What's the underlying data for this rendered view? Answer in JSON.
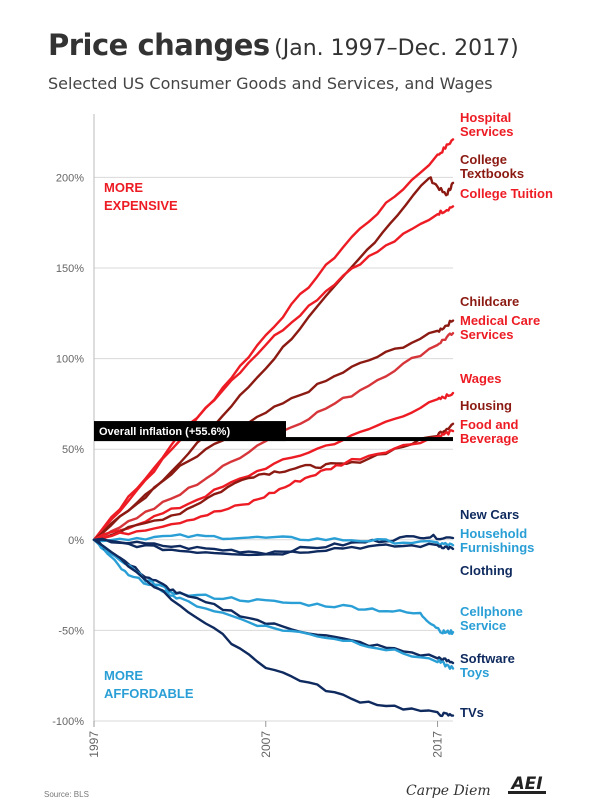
{
  "header": {
    "title": "Price changes",
    "date_range": "(Jan. 1997–Dec. 2017)",
    "subtitle": "Selected US Consumer Goods and Services, and Wages"
  },
  "footer": {
    "source": "Source: BLS",
    "brand": "Carpe Diem",
    "logo_text": "AEI"
  },
  "colors": {
    "expensive_red": "#ed1c24",
    "dark_red": "#8b1a12",
    "navy": "#0f2a5e",
    "light_blue": "#2a9fd6",
    "inflation_black": "#000000"
  },
  "chart_data": {
    "type": "line",
    "title": "Price changes",
    "xlabel": "",
    "ylabel": "",
    "x_ticks": [
      "1997",
      "2007",
      "2017"
    ],
    "xlim": [
      1997,
      2017.9
    ],
    "y_ticks": [
      200,
      150,
      100,
      50,
      0,
      -50,
      -100
    ],
    "y_tick_labels": [
      "200%",
      "150%",
      "100%",
      "50%",
      "0%",
      "-50%",
      "-100%"
    ],
    "ylim": [
      -100,
      235
    ],
    "grid": true,
    "annotations": {
      "more_expensive": [
        "MORE",
        "EXPENSIVE"
      ],
      "more_affordable": [
        "MORE",
        "AFFORDABLE"
      ],
      "inflation_label": "Overall inflation (+55.6%)",
      "inflation_value": 55.6
    },
    "series": [
      {
        "name": "Hospital Services",
        "label_lines": [
          "Hospital",
          "Services"
        ],
        "color": "#ed1c24",
        "x": [
          1997,
          2002,
          2007,
          2012,
          2017,
          2017.9
        ],
        "values": [
          0,
          55,
          113,
          167,
          212,
          221
        ]
      },
      {
        "name": "College Textbooks",
        "label_lines": [
          "College",
          "Textbooks"
        ],
        "color": "#8b1a12",
        "x": [
          1997,
          2002,
          2007,
          2012,
          2016.5,
          2017.5,
          2017.9
        ],
        "values": [
          0,
          42,
          95,
          150,
          200,
          190,
          197
        ]
      },
      {
        "name": "College Tuition",
        "label_lines": [
          "College Tuition"
        ],
        "color": "#ed1c24",
        "x": [
          1997,
          2002,
          2007,
          2012,
          2017,
          2017.9
        ],
        "values": [
          0,
          58,
          108,
          150,
          180,
          184
        ]
      },
      {
        "name": "Childcare",
        "label_lines": [
          "Childcare"
        ],
        "color": "#8b1a12",
        "x": [
          1997,
          2002,
          2007,
          2012,
          2017,
          2017.9
        ],
        "values": [
          0,
          40,
          70,
          95,
          115,
          121
        ]
      },
      {
        "name": "Medical Care Services",
        "label_lines": [
          "Medical Care",
          "Services"
        ],
        "color": "#d6353a",
        "x": [
          1997,
          2002,
          2007,
          2012,
          2017,
          2017.9
        ],
        "values": [
          0,
          25,
          55,
          80,
          108,
          114
        ]
      },
      {
        "name": "Wages",
        "label_lines": [
          "Wages"
        ],
        "color": "#ed1c24",
        "x": [
          1997,
          2002,
          2007,
          2012,
          2017,
          2017.9
        ],
        "values": [
          0,
          18,
          40,
          57,
          77,
          81
        ]
      },
      {
        "name": "Housing",
        "label_lines": [
          "Housing"
        ],
        "color": "#8b1a12",
        "x": [
          1997,
          2002,
          2006,
          2009,
          2012,
          2017,
          2017.9
        ],
        "values": [
          0,
          15,
          35,
          40,
          42,
          58,
          64
        ]
      },
      {
        "name": "Food and Beverage",
        "label_lines": [
          "Food and",
          "Beverage"
        ],
        "color": "#ed1c24",
        "x": [
          1997,
          2002,
          2006,
          2009,
          2012,
          2017,
          2017.9
        ],
        "values": [
          0,
          10,
          20,
          33,
          44,
          57,
          60
        ]
      },
      {
        "name": "New Cars",
        "label_lines": [
          "New Cars"
        ],
        "color": "#0f2a5e",
        "x": [
          1997,
          2002,
          2007,
          2012,
          2016,
          2017.9
        ],
        "values": [
          0,
          -4,
          -7,
          -2,
          2,
          1
        ]
      },
      {
        "name": "Household Furnishings",
        "label_lines": [
          "Household",
          "Furnishings"
        ],
        "color": "#2a9fd6",
        "x": [
          1997,
          2002,
          2007,
          2012,
          2017,
          2017.9
        ],
        "values": [
          0,
          2,
          1,
          0,
          -2,
          -3
        ]
      },
      {
        "name": "Clothing",
        "label_lines": [
          "Clothing"
        ],
        "color": "#0f2a5e",
        "x": [
          1997,
          2002,
          2007,
          2012,
          2017,
          2017.9
        ],
        "values": [
          0,
          -6,
          -8,
          -4,
          -3,
          -5
        ]
      },
      {
        "name": "Cellphone Service",
        "label_lines": [
          "Cellphone",
          "Service"
        ],
        "color": "#2a9fd6",
        "x": [
          1997,
          1999,
          2002,
          2007,
          2012,
          2016,
          2017.3,
          2017.9
        ],
        "values": [
          0,
          -20,
          -30,
          -34,
          -37,
          -41,
          -51,
          -51
        ]
      },
      {
        "name": "Software",
        "label_lines": [
          "Software"
        ],
        "color": "#0f2a5e",
        "x": [
          1997,
          2000,
          2002,
          2007,
          2012,
          2017,
          2017.9
        ],
        "values": [
          0,
          -20,
          -30,
          -46,
          -56,
          -65,
          -68
        ]
      },
      {
        "name": "Toys",
        "label_lines": [
          "Toys"
        ],
        "color": "#2a9fd6",
        "x": [
          1997,
          2000,
          2002,
          2007,
          2012,
          2017,
          2017.9
        ],
        "values": [
          0,
          -22,
          -33,
          -48,
          -56,
          -67,
          -71
        ]
      },
      {
        "name": "TVs",
        "label_lines": [
          "TVs"
        ],
        "color": "#0f2a5e",
        "x": [
          1997,
          2002,
          2007,
          2012,
          2017,
          2017.9
        ],
        "values": [
          0,
          -36,
          -70,
          -88,
          -96,
          -97
        ]
      }
    ]
  }
}
